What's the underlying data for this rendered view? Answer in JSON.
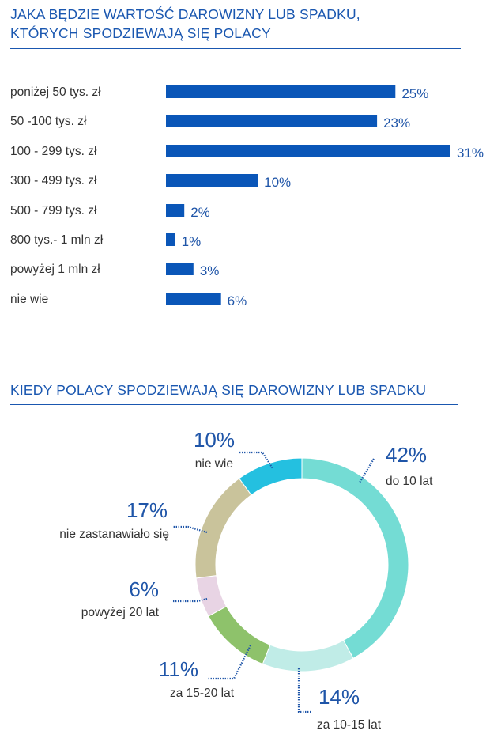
{
  "chart_data": [
    {
      "type": "bar",
      "orientation": "horizontal",
      "title": "JAKA BĘDZIE WARTOŚĆ DAROWIZNY LUB SPADKU, KTÓRYCH SPODZIEWAJĄ SIĘ POLACY",
      "title_lines": [
        "JAKA BĘDZIE WARTOŚĆ DAROWIZNY LUB SPADKU,",
        "KTÓRYCH SPODZIEWAJĄ SIĘ POLACY"
      ],
      "categories": [
        "poniżej 50 tys. zł",
        "50 -100 tys. zł",
        "100 - 299 tys. zł",
        "300 - 499 tys. zł",
        "500 - 799 tys. zł",
        "800 tys.- 1 mln zł",
        "powyżej 1 mln zł",
        "nie wie"
      ],
      "values": [
        25,
        23,
        31,
        10,
        2,
        1,
        3,
        6
      ],
      "value_labels": [
        "25%",
        "23%",
        "31%",
        "10%",
        "2%",
        "1%",
        "3%",
        "6%"
      ],
      "unit": "%",
      "bar_color": "#0a56b8",
      "xlim": [
        0,
        31
      ]
    },
    {
      "type": "pie",
      "style": "donut",
      "title": "KIEDY POLACY SPODZIEWAJĄ SIĘ DAROWIZNY LUB SPADKU",
      "slices": [
        {
          "label": "do 10 lat",
          "value": 42,
          "value_label": "42%",
          "color": "#74dcd4"
        },
        {
          "label": "za 10-15 lat",
          "value": 14,
          "value_label": "14%",
          "color": "#c0ece7"
        },
        {
          "label": "za 15-20 lat",
          "value": 11,
          "value_label": "11%",
          "color": "#8ec26b"
        },
        {
          "label": "powyżej 20 lat",
          "value": 6,
          "value_label": "6%",
          "color": "#e8d4e4"
        },
        {
          "label": "nie zastanawiało się",
          "value": 17,
          "value_label": "17%",
          "color": "#c9c39b"
        },
        {
          "label": "nie wie",
          "value": 10,
          "value_label": "10%",
          "color": "#24c0e0"
        }
      ],
      "leader_color": "#1f55a8"
    }
  ]
}
